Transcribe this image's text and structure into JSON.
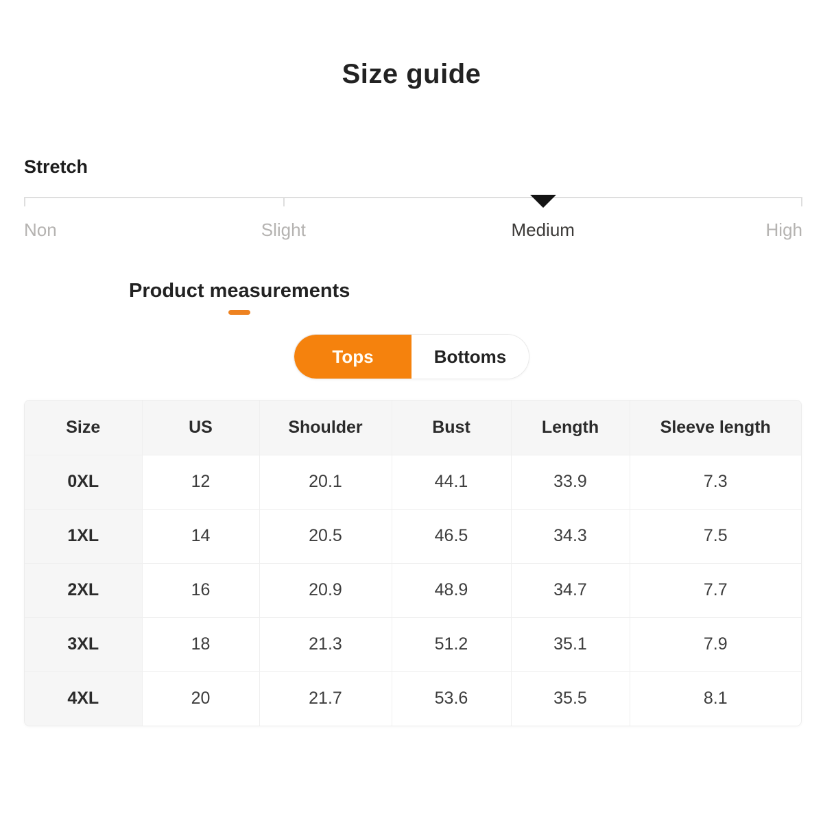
{
  "title": "Size guide",
  "stretch": {
    "label": "Stretch",
    "selected": "Medium",
    "options": [
      {
        "label": "Non"
      },
      {
        "label": "Slight"
      },
      {
        "label": "Medium"
      },
      {
        "label": "High"
      }
    ]
  },
  "measurement_section": {
    "tab_label": "Product measurements"
  },
  "category_toggle": {
    "options": [
      {
        "label": "Tops",
        "selected": true
      },
      {
        "label": "Bottoms",
        "selected": false
      }
    ]
  },
  "colors": {
    "accent_orange": "#f5820d",
    "indicator_black": "#141414",
    "muted_gray": "#b5b3b1"
  },
  "size_table": {
    "columns": [
      "Size",
      "US",
      "Shoulder",
      "Bust",
      "Length",
      "Sleeve length"
    ],
    "rows": [
      [
        "0XL",
        "12",
        "20.1",
        "44.1",
        "33.9",
        "7.3"
      ],
      [
        "1XL",
        "14",
        "20.5",
        "46.5",
        "34.3",
        "7.5"
      ],
      [
        "2XL",
        "16",
        "20.9",
        "48.9",
        "34.7",
        "7.7"
      ],
      [
        "3XL",
        "18",
        "21.3",
        "51.2",
        "35.1",
        "7.9"
      ],
      [
        "4XL",
        "20",
        "21.7",
        "53.6",
        "35.5",
        "8.1"
      ]
    ]
  }
}
